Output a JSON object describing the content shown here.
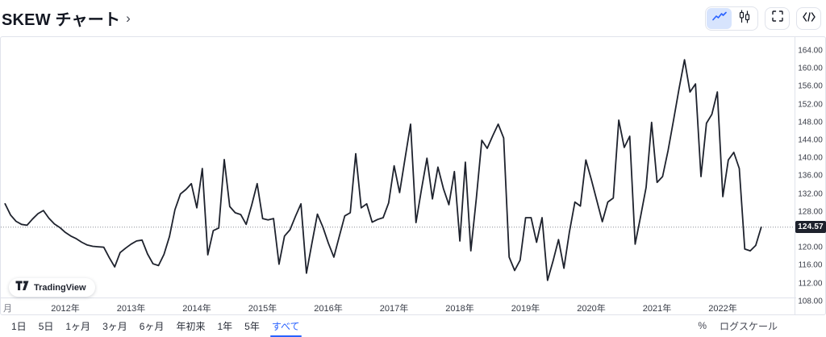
{
  "header": {
    "title": "SKEW チャート",
    "chevron": "›",
    "icons": [
      "line-chart",
      "candlestick",
      "fullscreen",
      "embed-code"
    ]
  },
  "chart": {
    "current_value_label": "124.57",
    "y_ticks": [
      "164.00",
      "160.00",
      "156.00",
      "152.00",
      "148.00",
      "144.00",
      "140.00",
      "136.00",
      "132.00",
      "128.00",
      "120.00",
      "116.00",
      "112.00",
      "108.00"
    ],
    "x_ticks": [
      "月",
      "2012年",
      "2013年",
      "2014年",
      "2015年",
      "2016年",
      "2017年",
      "2018年",
      "2019年",
      "2020年",
      "2021年",
      "2022年"
    ]
  },
  "chart_data": {
    "type": "line",
    "title": "SKEW チャート",
    "xlabel": "",
    "ylabel": "",
    "x_start": "2011-02",
    "x_end": "2022-08",
    "interval": "monthly",
    "ylim": [
      108,
      164
    ],
    "y_tick_step": 4,
    "grid": "off",
    "legend": "none",
    "current_value": 124.57,
    "series": [
      {
        "name": "SKEW",
        "values": [
          129.8,
          127.3,
          125.9,
          125.2,
          125.0,
          126.4,
          127.6,
          128.3,
          126.6,
          125.3,
          124.5,
          123.4,
          122.6,
          122.0,
          121.2,
          120.6,
          120.3,
          120.2,
          120.1,
          117.8,
          115.7,
          118.9,
          119.9,
          120.8,
          121.5,
          121.7,
          118.6,
          116.4,
          116.0,
          118.5,
          122.5,
          128.5,
          132.0,
          133.0,
          134.3,
          128.9,
          137.7,
          118.4,
          123.8,
          124.4,
          139.7,
          129.2,
          127.8,
          127.4,
          125.2,
          129.5,
          134.3,
          126.5,
          126.2,
          126.5,
          116.3,
          122.6,
          124.0,
          127.0,
          129.8,
          114.3,
          121.0,
          127.5,
          124.6,
          121.0,
          117.9,
          122.5,
          127.1,
          127.8,
          141.0,
          128.9,
          129.8,
          125.7,
          126.3,
          126.7,
          130.0,
          138.3,
          132.3,
          140.0,
          147.6,
          125.6,
          133.0,
          140.0,
          130.9,
          138.0,
          133.2,
          129.6,
          137.0,
          121.5,
          139.1,
          119.3,
          131.0,
          144.0,
          142.2,
          145.0,
          147.6,
          144.5,
          117.9,
          114.9,
          117.2,
          126.7,
          126.7,
          121.2,
          126.7,
          112.7,
          117.0,
          121.8,
          115.4,
          123.5,
          130.2,
          129.3,
          139.6,
          135.2,
          130.5,
          125.8,
          130.2,
          131.1,
          148.5,
          142.4,
          144.9,
          120.8,
          127.0,
          133.5,
          148.0,
          134.6,
          135.9,
          141.7,
          148.5,
          155.5,
          162.0,
          154.8,
          156.6,
          135.9,
          147.8,
          149.8,
          154.8,
          131.4,
          139.6,
          141.3,
          137.7,
          119.7,
          119.3,
          120.5,
          124.57
        ]
      }
    ]
  },
  "branding": {
    "name": "TradingView"
  },
  "footer": {
    "ranges": [
      "1日",
      "5日",
      "1ヶ月",
      "3ヶ月",
      "6ヶ月",
      "年初来",
      "1年",
      "5年",
      "すべて"
    ],
    "selected_range": "すべて",
    "percent_label": "%",
    "log_label": "ログスケール"
  },
  "colors": {
    "accent": "#2962ff",
    "line": "#1e222d",
    "badge_bg": "#1e222d",
    "selected_toggle_bg": "#d7e4fd",
    "border": "#e0e3eb",
    "text": "#131722"
  }
}
